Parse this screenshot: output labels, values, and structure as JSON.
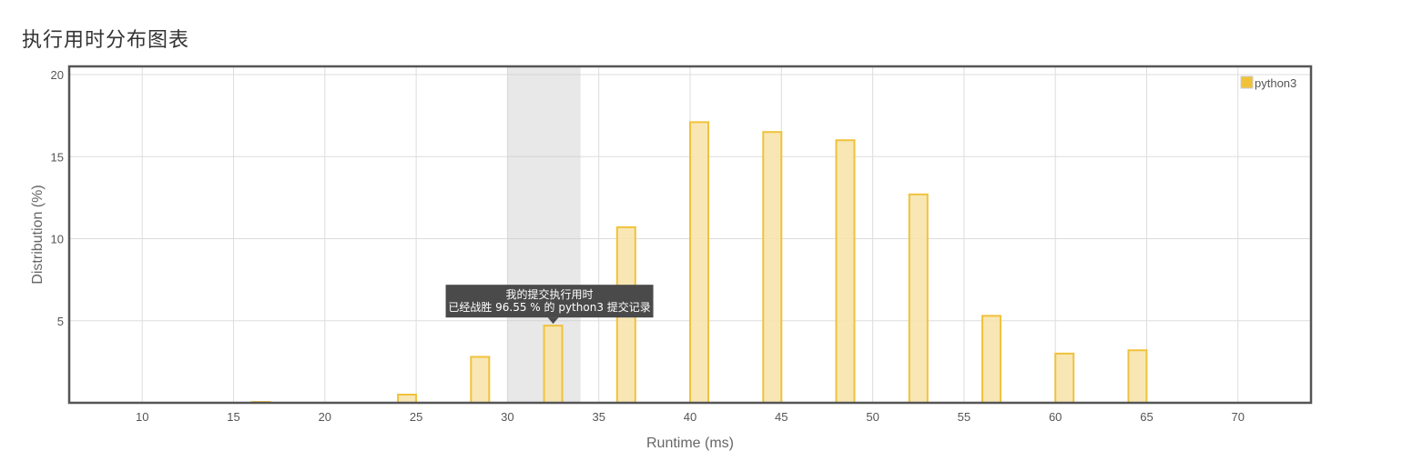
{
  "page": {
    "title": "执行用时分布图表"
  },
  "tooltip": {
    "line1": "我的提交执行用时",
    "line2": "已经战胜 96.55 % 的 python3 提交记录"
  },
  "chart_data": {
    "type": "bar",
    "title": "执行用时分布图表",
    "xlabel": "Runtime (ms)",
    "ylabel": "Distribution (%)",
    "xlim": [
      6,
      74
    ],
    "ylim": [
      0,
      20.5
    ],
    "xticks": [
      10,
      15,
      20,
      25,
      30,
      35,
      40,
      45,
      50,
      55,
      60,
      65,
      70
    ],
    "yticks": [
      5,
      10,
      15,
      20
    ],
    "grid": true,
    "legend_position": "top-right",
    "highlight_range": [
      30,
      34
    ],
    "series": [
      {
        "name": "python3",
        "color": "#f0c23b",
        "fill": "#f7e4ac",
        "x": [
          16.5,
          24.5,
          28.5,
          32.5,
          36.5,
          40.5,
          44.5,
          48.5,
          52.5,
          56.5,
          60.5,
          64.5
        ],
        "values": [
          0.05,
          0.5,
          2.8,
          4.7,
          10.7,
          17.1,
          16.5,
          16.0,
          12.7,
          5.3,
          3.0,
          3.2
        ]
      }
    ]
  }
}
